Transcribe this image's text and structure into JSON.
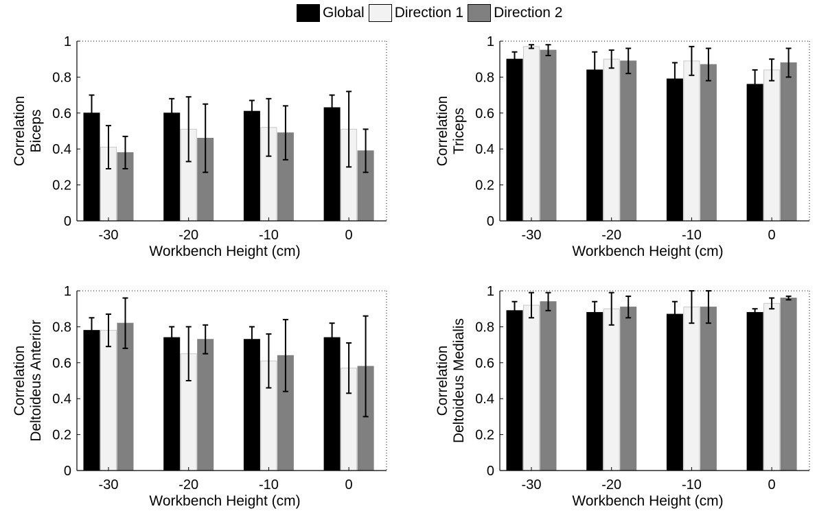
{
  "legend": {
    "items": [
      {
        "label": "Global",
        "color": "#000000"
      },
      {
        "label": "Direction 1",
        "color": "#f2f2f2"
      },
      {
        "label": "Direction 2",
        "color": "#808080"
      }
    ]
  },
  "chart_data": [
    {
      "type": "bar",
      "ylabel": [
        "Correlation",
        "Biceps"
      ],
      "xlabel": "Workbench Height (cm)",
      "categories": [
        "-30",
        "-20",
        "-10",
        "0"
      ],
      "ylim": [
        0,
        1
      ],
      "yticks": [
        "0",
        "0.2",
        "0.4",
        "0.6",
        "0.8",
        "1"
      ],
      "series": [
        {
          "name": "Global",
          "values": [
            0.6,
            0.6,
            0.61,
            0.63
          ],
          "err": [
            0.1,
            0.08,
            0.06,
            0.07
          ]
        },
        {
          "name": "Direction 1",
          "values": [
            0.41,
            0.51,
            0.52,
            0.51
          ],
          "err": [
            0.12,
            0.18,
            0.16,
            0.21
          ]
        },
        {
          "name": "Direction 2",
          "values": [
            0.38,
            0.46,
            0.49,
            0.39
          ],
          "err": [
            0.09,
            0.19,
            0.15,
            0.12
          ]
        }
      ]
    },
    {
      "type": "bar",
      "ylabel": [
        "Correlation",
        "Triceps"
      ],
      "xlabel": "Workbench Height (cm)",
      "categories": [
        "-30",
        "-20",
        "-10",
        "0"
      ],
      "ylim": [
        0,
        1
      ],
      "yticks": [
        "0",
        "0.2",
        "0.4",
        "0.6",
        "0.8",
        "1"
      ],
      "series": [
        {
          "name": "Global",
          "values": [
            0.9,
            0.84,
            0.79,
            0.76
          ],
          "err": [
            0.04,
            0.1,
            0.09,
            0.08
          ]
        },
        {
          "name": "Direction 1",
          "values": [
            0.97,
            0.9,
            0.89,
            0.84
          ],
          "err": [
            0.01,
            0.05,
            0.08,
            0.06
          ]
        },
        {
          "name": "Direction 2",
          "values": [
            0.95,
            0.89,
            0.87,
            0.88
          ],
          "err": [
            0.03,
            0.07,
            0.09,
            0.08
          ]
        }
      ]
    },
    {
      "type": "bar",
      "ylabel": [
        "Correlation",
        "Deltoideus Anterior"
      ],
      "xlabel": "Workbench Height (cm)",
      "categories": [
        "-30",
        "-20",
        "-10",
        "0"
      ],
      "ylim": [
        0,
        1
      ],
      "yticks": [
        "0",
        "0.2",
        "0.4",
        "0.6",
        "0.8",
        "1"
      ],
      "series": [
        {
          "name": "Global",
          "values": [
            0.78,
            0.74,
            0.73,
            0.74
          ],
          "err": [
            0.07,
            0.06,
            0.07,
            0.08
          ]
        },
        {
          "name": "Direction 1",
          "values": [
            0.78,
            0.65,
            0.61,
            0.57
          ],
          "err": [
            0.09,
            0.15,
            0.15,
            0.14
          ]
        },
        {
          "name": "Direction 2",
          "values": [
            0.82,
            0.73,
            0.64,
            0.58
          ],
          "err": [
            0.14,
            0.08,
            0.2,
            0.28
          ]
        }
      ]
    },
    {
      "type": "bar",
      "ylabel": [
        "Correlation",
        "Deltoideus Medialis"
      ],
      "xlabel": "Workbench Height (cm)",
      "categories": [
        "-30",
        "-20",
        "-10",
        "0"
      ],
      "ylim": [
        0,
        1
      ],
      "yticks": [
        "0",
        "0.2",
        "0.4",
        "0.6",
        "0.8",
        "1"
      ],
      "series": [
        {
          "name": "Global",
          "values": [
            0.89,
            0.88,
            0.87,
            0.88
          ],
          "err": [
            0.05,
            0.06,
            0.07,
            0.02
          ]
        },
        {
          "name": "Direction 1",
          "values": [
            0.92,
            0.9,
            0.91,
            0.93
          ],
          "err": [
            0.07,
            0.09,
            0.09,
            0.03
          ]
        },
        {
          "name": "Direction 2",
          "values": [
            0.94,
            0.91,
            0.91,
            0.96
          ],
          "err": [
            0.05,
            0.06,
            0.09,
            0.01
          ]
        }
      ]
    }
  ]
}
